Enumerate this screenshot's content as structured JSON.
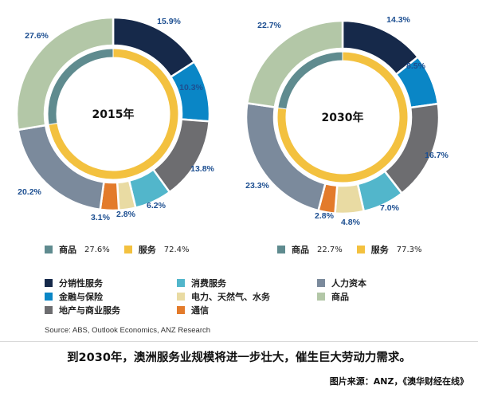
{
  "colors": {
    "distribution": "#16294a",
    "finance": "#0a86c6",
    "property": "#6d6d70",
    "consumer": "#52b6cb",
    "utilities": "#e9dba3",
    "communications": "#e37b2b",
    "human": "#7b8a9c",
    "goods": "#b3c7a7",
    "goods_inner": "#5f8b8f",
    "services_inner": "#f3c13f"
  },
  "chart_data": [
    {
      "type": "pie",
      "title": "2015年",
      "outer": [
        {
          "name": "分销性服务",
          "value": 15.9,
          "label": "15.9%",
          "color": "#16294a"
        },
        {
          "name": "金融与保险",
          "value": 10.3,
          "label": "10.3%",
          "color": "#0a86c6"
        },
        {
          "name": "地产与商业服务",
          "value": 13.8,
          "label": "13.8%",
          "color": "#6d6d70"
        },
        {
          "name": "消费服务",
          "value": 6.2,
          "label": "6.2%",
          "color": "#52b6cb"
        },
        {
          "name": "电力、天然气、水务",
          "value": 2.8,
          "label": "2.8%",
          "color": "#e9dba3"
        },
        {
          "name": "通信",
          "value": 3.1,
          "label": "3.1%",
          "color": "#e37b2b"
        },
        {
          "name": "人力资本",
          "value": 20.2,
          "label": "20.2%",
          "color": "#7b8a9c"
        },
        {
          "name": "商品",
          "value": 27.6,
          "label": "27.6%",
          "color": "#b3c7a7"
        }
      ],
      "inner": [
        {
          "name": "服务",
          "value": 72.4,
          "color": "#f3c13f"
        },
        {
          "name": "商品",
          "value": 27.6,
          "color": "#5f8b8f"
        }
      ]
    },
    {
      "type": "pie",
      "title": "2030年",
      "outer": [
        {
          "name": "分销性服务",
          "value": 14.3,
          "label": "14.3%",
          "color": "#16294a"
        },
        {
          "name": "金融与保险",
          "value": 8.5,
          "label": "8.5%",
          "color": "#0a86c6"
        },
        {
          "name": "地产与商业服务",
          "value": 16.7,
          "label": "16.7%",
          "color": "#6d6d70"
        },
        {
          "name": "消费服务",
          "value": 7.0,
          "label": "7.0%",
          "color": "#52b6cb"
        },
        {
          "name": "电力、天然气、水务",
          "value": 4.8,
          "label": "4.8%",
          "color": "#e9dba3"
        },
        {
          "name": "通信",
          "value": 2.8,
          "label": "2.8%",
          "color": "#e37b2b"
        },
        {
          "name": "人力资本",
          "value": 23.3,
          "label": "23.3%",
          "color": "#7b8a9c"
        },
        {
          "name": "商品",
          "value": 22.7,
          "label": "22.7%",
          "color": "#b3c7a7"
        }
      ],
      "inner": [
        {
          "name": "服务",
          "value": 77.3,
          "color": "#f3c13f"
        },
        {
          "name": "商品",
          "value": 22.7,
          "color": "#5f8b8f"
        }
      ]
    }
  ],
  "legend": {
    "y2015": {
      "goods_label": "商品",
      "goods_value": "27.6%",
      "services_label": "服务",
      "services_value": "72.4%"
    },
    "y2030": {
      "goods_label": "商品",
      "goods_value": "22.7%",
      "services_label": "服务",
      "services_value": "77.3%"
    },
    "categories": [
      {
        "name": "分销性服务",
        "color": "#16294a"
      },
      {
        "name": "消费服务",
        "color": "#52b6cb"
      },
      {
        "name": "人力资本",
        "color": "#7b8a9c"
      },
      {
        "name": "金融与保险",
        "color": "#0a86c6"
      },
      {
        "name": "电力、天然气、水务",
        "color": "#e9dba3"
      },
      {
        "name": "商品",
        "color": "#b3c7a7"
      },
      {
        "name": "地产与商业服务",
        "color": "#6d6d70"
      },
      {
        "name": "通信",
        "color": "#e37b2b"
      }
    ]
  },
  "source": "Source: ABS, Outlook Economics, ANZ Research",
  "headline": "到2030年，澳洲服务业规模将进一步壮大，催生巨大劳动力需求。",
  "credit": "图片来源：ANZ，《澳华财经在线》"
}
